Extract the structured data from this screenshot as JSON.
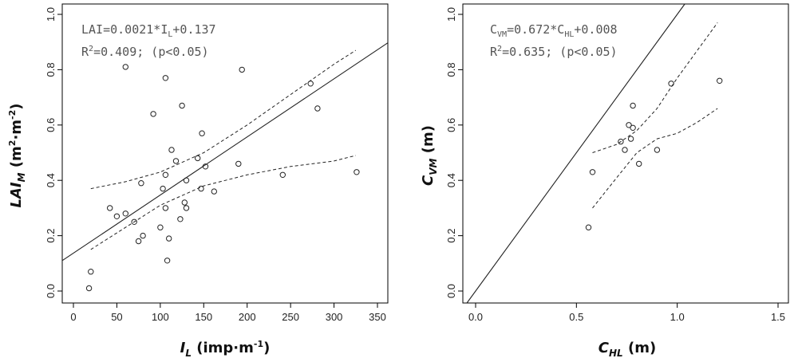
{
  "chart_data": [
    {
      "type": "scatter",
      "xlim": [
        0,
        350
      ],
      "ylim": [
        0,
        1.0
      ],
      "xticks": [
        "0",
        "50",
        "100",
        "150",
        "200",
        "250",
        "300",
        "350"
      ],
      "yticks": [
        "0.0",
        "0.2",
        "0.4",
        "0.6",
        "0.8",
        "1.0"
      ],
      "xlabel": {
        "main": "I",
        "sub": "L",
        "unit": " (imp·m",
        "unit_sup": "-1",
        "close": ")"
      },
      "ylabel": {
        "main": "LAI",
        "sub": "M",
        "unit": " (m",
        "unit_sup1": "2",
        "mid": "·m",
        "unit_sup2": "-2",
        "close": ")"
      },
      "annotation": {
        "line1": {
          "a": "LAI=0.0021*I",
          "sub": "L",
          "b": "+0.137"
        },
        "line2": {
          "a": "R",
          "sup": "2",
          "b": "=0.409;  (p<0.05)"
        }
      },
      "fit": {
        "slope": 0.0021,
        "intercept": 0.137
      },
      "points": [
        [
          18,
          0.01
        ],
        [
          20,
          0.07
        ],
        [
          42,
          0.3
        ],
        [
          50,
          0.27
        ],
        [
          60,
          0.28
        ],
        [
          60,
          0.81
        ],
        [
          70,
          0.25
        ],
        [
          75,
          0.18
        ],
        [
          78,
          0.39
        ],
        [
          80,
          0.2
        ],
        [
          92,
          0.64
        ],
        [
          100,
          0.23
        ],
        [
          103,
          0.37
        ],
        [
          106,
          0.42
        ],
        [
          106,
          0.3
        ],
        [
          106,
          0.77
        ],
        [
          108,
          0.11
        ],
        [
          110,
          0.19
        ],
        [
          113,
          0.51
        ],
        [
          118,
          0.47
        ],
        [
          123,
          0.26
        ],
        [
          125,
          0.67
        ],
        [
          128,
          0.32
        ],
        [
          130,
          0.4
        ],
        [
          130,
          0.3
        ],
        [
          143,
          0.48
        ],
        [
          147,
          0.37
        ],
        [
          148,
          0.57
        ],
        [
          152,
          0.45
        ],
        [
          162,
          0.36
        ],
        [
          190,
          0.46
        ],
        [
          194,
          0.8
        ],
        [
          241,
          0.42
        ],
        [
          273,
          0.75
        ],
        [
          281,
          0.66
        ],
        [
          326,
          0.43
        ]
      ],
      "ci_upper": [
        [
          20,
          0.37
        ],
        [
          60,
          0.395
        ],
        [
          100,
          0.43
        ],
        [
          150,
          0.5
        ],
        [
          200,
          0.6
        ],
        [
          250,
          0.71
        ],
        [
          300,
          0.82
        ],
        [
          325,
          0.87
        ]
      ],
      "ci_lower": [
        [
          20,
          0.15
        ],
        [
          60,
          0.23
        ],
        [
          100,
          0.31
        ],
        [
          150,
          0.38
        ],
        [
          200,
          0.42
        ],
        [
          250,
          0.45
        ],
        [
          300,
          0.47
        ],
        [
          325,
          0.49
        ]
      ]
    },
    {
      "type": "scatter",
      "xlim": [
        0,
        1.5
      ],
      "ylim": [
        0,
        1.0
      ],
      "xticks": [
        "0.0",
        "0.5",
        "1.0",
        "1.5"
      ],
      "yticks": [
        "0.0",
        "0.2",
        "0.4",
        "0.6",
        "0.8",
        "1.0"
      ],
      "xlabel": {
        "main": "C",
        "sub": "HL",
        "unit": " (m)"
      },
      "ylabel": {
        "main": "C",
        "sub": "VM",
        "unit": " (m)"
      },
      "annotation": {
        "line1": {
          "a": "C",
          "sub1": "VM",
          "b": "=0.672*C",
          "sub2": "HL",
          "c": "+0.008"
        },
        "line2": {
          "a": "R",
          "sup": "2",
          "b": "=0.635;  (p<0.05)"
        }
      },
      "reference_line": {
        "slope": 1,
        "intercept": 0
      },
      "points": [
        [
          0.56,
          0.23
        ],
        [
          0.58,
          0.43
        ],
        [
          0.72,
          0.54
        ],
        [
          0.74,
          0.51
        ],
        [
          0.76,
          0.6
        ],
        [
          0.77,
          0.55
        ],
        [
          0.78,
          0.59
        ],
        [
          0.78,
          0.67
        ],
        [
          0.81,
          0.46
        ],
        [
          0.9,
          0.51
        ],
        [
          0.97,
          0.75
        ],
        [
          1.21,
          0.76
        ]
      ],
      "ci_upper": [
        [
          0.58,
          0.5
        ],
        [
          0.7,
          0.53
        ],
        [
          0.8,
          0.58
        ],
        [
          0.9,
          0.66
        ],
        [
          1.0,
          0.77
        ],
        [
          1.1,
          0.87
        ],
        [
          1.2,
          0.97
        ]
      ],
      "ci_lower": [
        [
          0.58,
          0.3
        ],
        [
          0.7,
          0.41
        ],
        [
          0.8,
          0.5
        ],
        [
          0.9,
          0.55
        ],
        [
          1.0,
          0.57
        ],
        [
          1.1,
          0.61
        ],
        [
          1.2,
          0.66
        ]
      ]
    }
  ]
}
